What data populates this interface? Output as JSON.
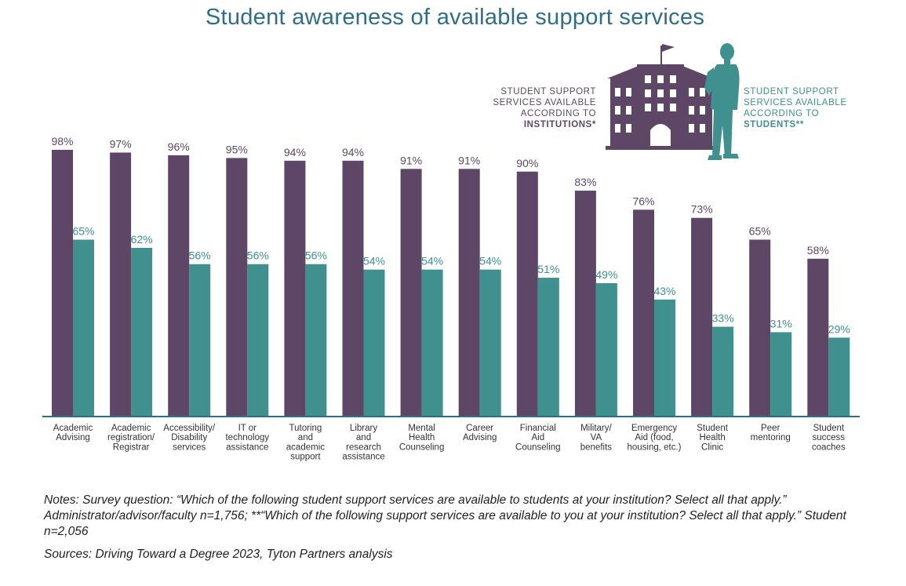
{
  "legend": {
    "institutions_lines": [
      "STUDENT SUPPORT",
      "SERVICES AVAILABLE",
      "ACCORDING TO"
    ],
    "institutions_bold": "INSTITUTIONS*",
    "students_lines": [
      "STUDENT SUPPORT",
      "SERVICES AVAILABLE",
      "ACCORDING TO"
    ],
    "students_bold": "STUDENTS**"
  },
  "colors": {
    "institutions": "#5e4766",
    "students": "#3f908f",
    "title": "#2e6f87",
    "axis": "#2e6f87"
  },
  "icons": [
    "school-building-icon",
    "student-silhouette-icon"
  ],
  "chart_data": {
    "type": "bar",
    "title": "Student awareness of available support services",
    "categories": [
      [
        "Academic",
        "Advising"
      ],
      [
        "Academic",
        "registration/",
        "Registrar"
      ],
      [
        "Accessibility/",
        "Disability",
        "services"
      ],
      [
        "IT or",
        "technology",
        "assistance"
      ],
      [
        "Tutoring",
        "and",
        "academic",
        "support"
      ],
      [
        "Library",
        "and",
        "research",
        "assistance"
      ],
      [
        "Mental",
        "Health",
        "Counseling"
      ],
      [
        "Career",
        "Advising"
      ],
      [
        "Financial",
        "Aid",
        "Counseling"
      ],
      [
        "Military/",
        "VA",
        "benefits"
      ],
      [
        "Emergency",
        "Aid (food,",
        "housing, etc.)"
      ],
      [
        "Student",
        "Health",
        "Clinic"
      ],
      [
        "Peer",
        "mentoring"
      ],
      [
        "Student",
        "success",
        "coaches"
      ]
    ],
    "series": [
      {
        "name": "STUDENT SUPPORT SERVICES AVAILABLE ACCORDING TO INSTITUTIONS*",
        "values": [
          98,
          97,
          96,
          95,
          94,
          94,
          91,
          91,
          90,
          83,
          76,
          73,
          65,
          58
        ],
        "labels": [
          "98%",
          "97%",
          "96%",
          "95%",
          "94%",
          "94%",
          "91%",
          "91%",
          "90%",
          "83%",
          "76%",
          "73%",
          "65%",
          "58%"
        ]
      },
      {
        "name": "STUDENT SUPPORT SERVICES AVAILABLE ACCORDING TO STUDENTS**",
        "values": [
          65,
          62,
          56,
          56,
          56,
          54,
          54,
          54,
          51,
          49,
          43,
          33,
          31,
          29
        ],
        "labels": [
          "65%",
          "62%",
          "56%",
          "56%",
          "56%",
          "54%",
          "54%",
          "54%",
          "51%",
          "49%",
          "43%",
          "33%",
          "31%",
          "29%"
        ]
      }
    ],
    "ylim": [
      0,
      100
    ],
    "grid": false,
    "legend_position": "top-right"
  },
  "notes": "Notes: Survey question: “Which of the following student support services are available to students at your institution? Select all that apply.” Administrator/advisor/faculty n=1,756; **“Which of the following support services are available to you at your institution? Select all that apply.” Student n=2,056",
  "sources": "Sources: Driving Toward a Degree 2023, Tyton Partners analysis"
}
